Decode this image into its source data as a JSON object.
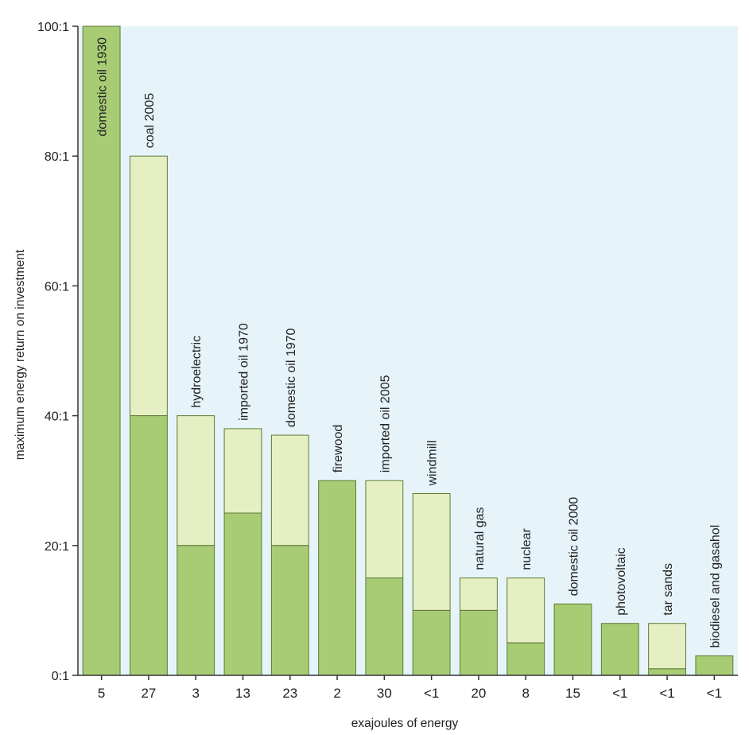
{
  "chart_data": {
    "type": "bar",
    "ylabel": "maximum energy return on investment",
    "xlabel": "exajoules of energy",
    "ylim": [
      0,
      100
    ],
    "yticks": [
      0,
      20,
      40,
      60,
      80,
      100
    ],
    "ytick_labels": [
      "0:1",
      "20:1",
      "40:1",
      "60:1",
      "80:1",
      "100:1"
    ],
    "colors": {
      "background": "#e6f4fa",
      "low": "#a8cc74",
      "high": "#e6efc3",
      "stroke": "#5d7a35"
    },
    "bars": [
      {
        "label": "domestic oil 1930",
        "category": "5",
        "low": 100,
        "high": 100,
        "label_inside": true
      },
      {
        "label": "coal 2005",
        "category": "27",
        "low": 40,
        "high": 80
      },
      {
        "label": "hydroelectric",
        "category": "3",
        "low": 20,
        "high": 40
      },
      {
        "label": "imported oil 1970",
        "category": "13",
        "low": 25,
        "high": 38
      },
      {
        "label": "domestic oil 1970",
        "category": "23",
        "low": 20,
        "high": 37
      },
      {
        "label": "firewood",
        "category": "2",
        "low": 30,
        "high": 30
      },
      {
        "label": "imported oil 2005",
        "category": "30",
        "low": 15,
        "high": 30
      },
      {
        "label": "windmill",
        "category": "<1",
        "low": 10,
        "high": 28
      },
      {
        "label": "natural gas",
        "category": "20",
        "low": 10,
        "high": 15
      },
      {
        "label": "nuclear",
        "category": "8",
        "low": 5,
        "high": 15
      },
      {
        "label": "domestic oil 2000",
        "category": "15",
        "low": 11,
        "high": 11
      },
      {
        "label": "photovoltaic",
        "category": "<1",
        "low": 8,
        "high": 8
      },
      {
        "label": "tar sands",
        "category": "<1",
        "low": 1,
        "high": 8
      },
      {
        "label": "biodiesel and gasahol",
        "category": "<1",
        "low": 3,
        "high": 3
      }
    ]
  }
}
